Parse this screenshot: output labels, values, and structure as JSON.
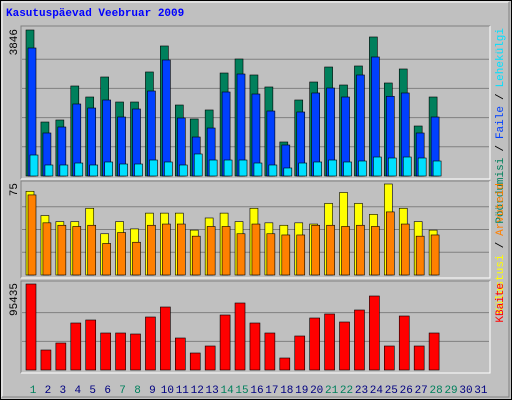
{
  "title": "Kasutuspäevad Veebruar 2009",
  "legend_separator": "/",
  "chart_data": [
    {
      "type": "bar",
      "ylim": [
        0,
        3846
      ],
      "yticks": [
        3846
      ],
      "series": [
        {
          "name": "Pöördumisi",
          "color": "#00805c",
          "values": [
            3846,
            1422,
            1475,
            2371,
            2081,
            2608,
            1949,
            1949,
            2740,
            3425,
            1870,
            1502,
            1739,
            2713,
            3082,
            2661,
            2345,
            896,
            2002,
            2476,
            2871,
            2397,
            2898,
            3662,
            2450,
            2819,
            1317,
            2081,
            null,
            null,
            null
          ]
        },
        {
          "name": "Faile",
          "color": "#0040ff",
          "values": [
            3372,
            1133,
            1291,
            1897,
            1791,
            2002,
            1554,
            1765,
            2239,
            3056,
            1528,
            1027,
            1264,
            2213,
            2687,
            2160,
            1712,
            817,
            1686,
            2187,
            2318,
            2081,
            2661,
            3135,
            2100,
            2187,
            1133,
            1554,
            null,
            null,
            null
          ]
        },
        {
          "name": "Lehekülgi",
          "color": "#00e0ff",
          "values": [
            553,
            290,
            290,
            342,
            290,
            369,
            316,
            316,
            421,
            369,
            290,
            580,
            421,
            421,
            421,
            342,
            290,
            211,
            342,
            369,
            421,
            369,
            395,
            500,
            474,
            500,
            474,
            395,
            null,
            null,
            null
          ]
        }
      ]
    },
    {
      "type": "bar",
      "ylim": [
        0,
        75
      ],
      "yticks": [
        75
      ],
      "series": [
        {
          "name": "Külastusi",
          "color": "#ffff00",
          "values": [
            69,
            49,
            44,
            44,
            55,
            34,
            44,
            38,
            51,
            51,
            51,
            37,
            47,
            51,
            44,
            55,
            43,
            41,
            43,
            42,
            59,
            68,
            59,
            50,
            75,
            55,
            44,
            37,
            null,
            null,
            null
          ]
        },
        {
          "name": "Arvuteid",
          "color": "#ff8000",
          "values": [
            66,
            43,
            41,
            40,
            41,
            26,
            35,
            27,
            41,
            42,
            42,
            32,
            40,
            40,
            34,
            42,
            34,
            33,
            33,
            41,
            41,
            40,
            41,
            40,
            52,
            42,
            32,
            33,
            null,
            null,
            null
          ]
        }
      ]
    },
    {
      "type": "bar",
      "ylim": [
        0,
        95435
      ],
      "yticks": [
        95435
      ],
      "categories": [
        "1",
        "2",
        "3",
        "4",
        "5",
        "6",
        "7",
        "8",
        "9",
        "10",
        "11",
        "12",
        "13",
        "14",
        "15",
        "16",
        "17",
        "18",
        "19",
        "20",
        "21",
        "22",
        "23",
        "24",
        "25",
        "26",
        "27",
        "28",
        "29",
        "30",
        "31"
      ],
      "category_colors": [
        "#00805c",
        "#000080",
        "#000080",
        "#000080",
        "#000080",
        "#000080",
        "#00805c",
        "#00805c",
        "#000080",
        "#000080",
        "#000080",
        "#000080",
        "#000080",
        "#00805c",
        "#00805c",
        "#000080",
        "#000080",
        "#000080",
        "#000080",
        "#000080",
        "#00805c",
        "#00805c",
        "#000080",
        "#000080",
        "#000080",
        "#000080",
        "#000080",
        "#00805c",
        "#00805c",
        "#000080",
        "#000080"
      ],
      "series": [
        {
          "name": "KBaite",
          "color": "#ff0000",
          "values": [
            95435,
            22194,
            29963,
            52156,
            55485,
            41060,
            41060,
            39950,
            58814,
            69911,
            35512,
            18865,
            26634,
            61033,
            74349,
            52156,
            41060,
            13316,
            37731,
            57704,
            62142,
            53266,
            66582,
            82118,
            26634,
            59924,
            26634,
            41060,
            null,
            null,
            null
          ]
        }
      ]
    }
  ]
}
